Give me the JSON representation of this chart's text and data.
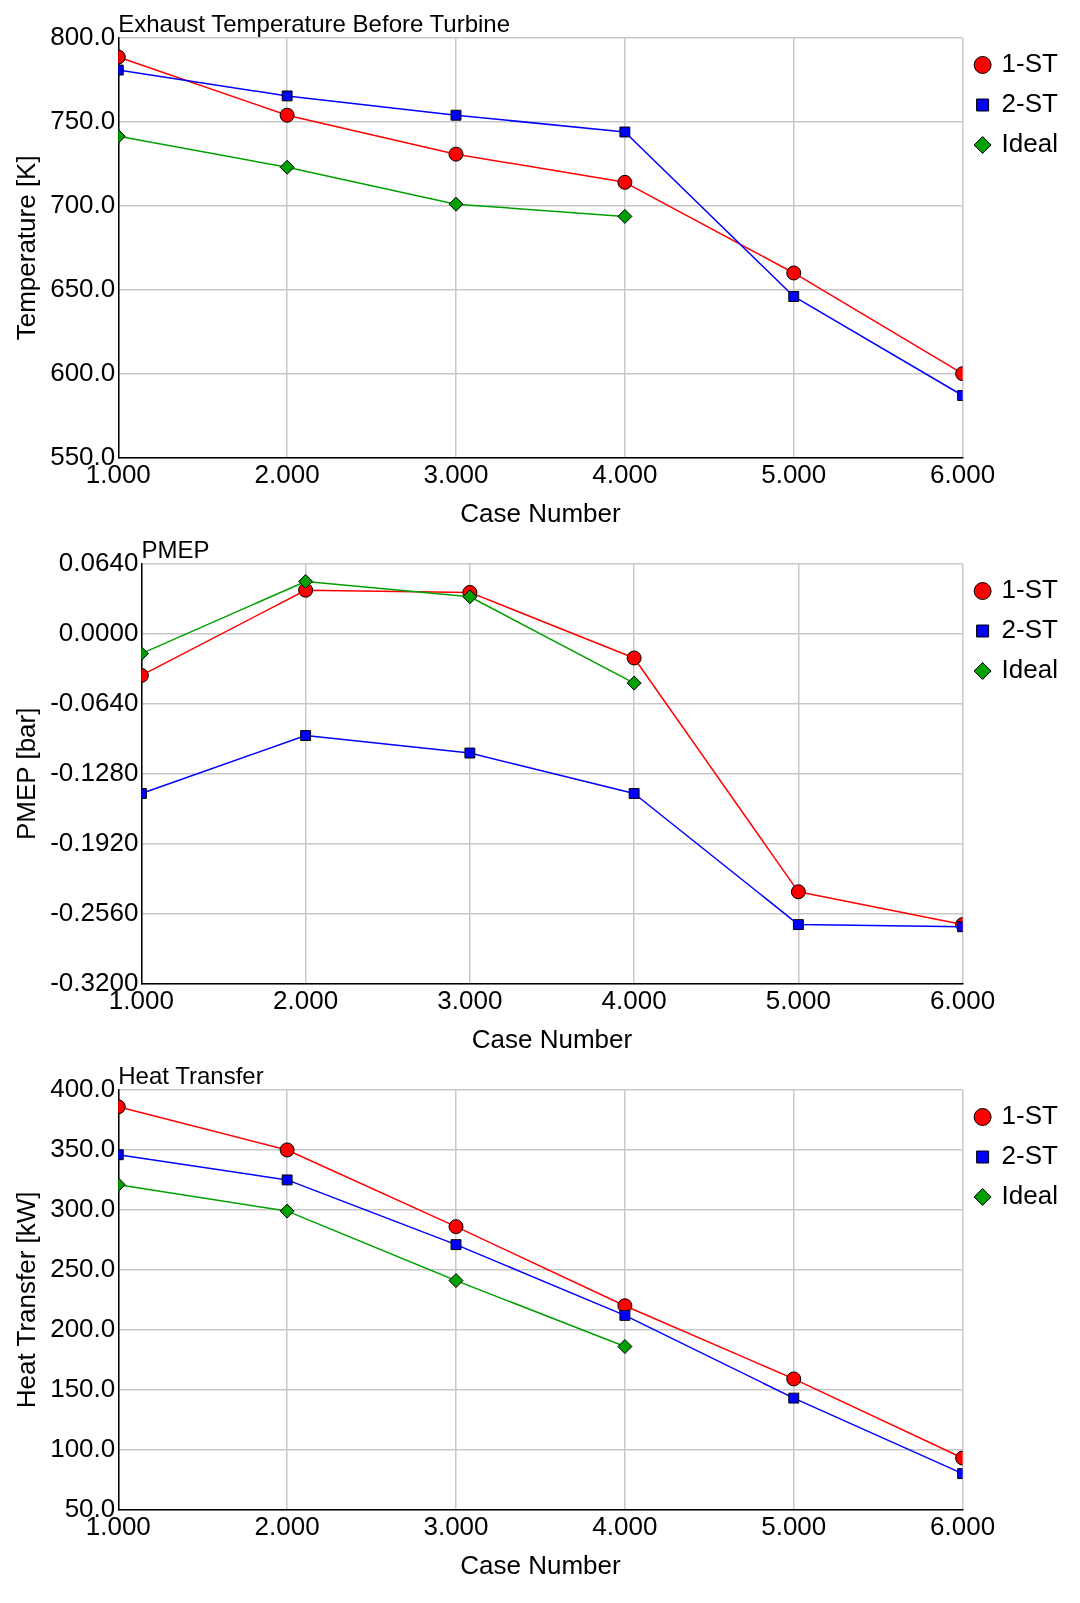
{
  "chart_data": [
    {
      "type": "line",
      "title": "Exhaust Temperature Before Turbine",
      "xlabel": "Case Number",
      "ylabel": "Temperature [K]",
      "x": [
        1,
        2,
        3,
        4,
        5,
        6
      ],
      "xlim": [
        1,
        6
      ],
      "xticks": [
        {
          "value": 1,
          "label": "1.000"
        },
        {
          "value": 2,
          "label": "2.000"
        },
        {
          "value": 3,
          "label": "3.000"
        },
        {
          "value": 4,
          "label": "4.000"
        },
        {
          "value": 5,
          "label": "5.000"
        },
        {
          "value": 6,
          "label": "6.000"
        }
      ],
      "ylim": [
        550,
        800
      ],
      "yticks": [
        {
          "value": 550,
          "label": "550.0"
        },
        {
          "value": 600,
          "label": "600.0"
        },
        {
          "value": 650,
          "label": "650.0"
        },
        {
          "value": 700,
          "label": "700.0"
        },
        {
          "value": 750,
          "label": "750.0"
        },
        {
          "value": 800,
          "label": "800.0"
        }
      ],
      "grid": true,
      "legend": "top right",
      "line_style": "solid",
      "series": [
        {
          "name": "1-ST",
          "color": "#ff0000",
          "marker": "circle",
          "values": [
            788.7,
            754,
            730.8,
            714,
            660,
            600
          ]
        },
        {
          "name": "2-ST",
          "color": "#0000ff",
          "marker": "square",
          "values": [
            780.9,
            765.5,
            754,
            744,
            646,
            587
          ]
        },
        {
          "name": "Ideal",
          "color": "#00a000",
          "marker": "diamond",
          "values": [
            741.4,
            723,
            701,
            693.7,
            null,
            null
          ]
        }
      ]
    },
    {
      "type": "line",
      "title": "PMEP",
      "xlabel": "Case Number",
      "ylabel": "PMEP [bar]",
      "x": [
        1,
        2,
        3,
        4,
        5,
        6
      ],
      "xlim": [
        1,
        6
      ],
      "xticks": [
        {
          "value": 1,
          "label": "1.000"
        },
        {
          "value": 2,
          "label": "2.000"
        },
        {
          "value": 3,
          "label": "3.000"
        },
        {
          "value": 4,
          "label": "4.000"
        },
        {
          "value": 5,
          "label": "5.000"
        },
        {
          "value": 6,
          "label": "6.000"
        }
      ],
      "ylim": [
        -0.32,
        0.064
      ],
      "yticks": [
        {
          "value": -0.32,
          "label": "-0.3200"
        },
        {
          "value": -0.256,
          "label": "-0.2560"
        },
        {
          "value": -0.192,
          "label": "-0.1920"
        },
        {
          "value": -0.128,
          "label": "-0.1280"
        },
        {
          "value": -0.064,
          "label": "-0.0640"
        },
        {
          "value": 0,
          "label": "0.0000"
        },
        {
          "value": 0.064,
          "label": "0.0640"
        }
      ],
      "grid": true,
      "legend": "top right",
      "line_style": "solid",
      "series": [
        {
          "name": "1-ST",
          "color": "#ff0000",
          "marker": "circle",
          "values": [
            -0.038,
            0.04,
            0.038,
            -0.022,
            -0.236,
            -0.266
          ]
        },
        {
          "name": "2-ST",
          "color": "#0000ff",
          "marker": "square",
          "values": [
            -0.146,
            -0.093,
            -0.109,
            -0.146,
            -0.266,
            -0.268
          ]
        },
        {
          "name": "Ideal",
          "color": "#00a000",
          "marker": "diamond",
          "values": [
            -0.018,
            0.048,
            0.034,
            -0.045,
            null,
            null
          ]
        }
      ]
    },
    {
      "type": "line",
      "title": "Heat Transfer",
      "xlabel": "Case Number",
      "ylabel": "Heat Transfer [kW]",
      "x": [
        1,
        2,
        3,
        4,
        5,
        6
      ],
      "xlim": [
        1,
        6
      ],
      "xticks": [
        {
          "value": 1,
          "label": "1.000"
        },
        {
          "value": 2,
          "label": "2.000"
        },
        {
          "value": 3,
          "label": "3.000"
        },
        {
          "value": 4,
          "label": "4.000"
        },
        {
          "value": 5,
          "label": "5.000"
        },
        {
          "value": 6,
          "label": "6.000"
        }
      ],
      "ylim": [
        50,
        400
      ],
      "yticks": [
        {
          "value": 50,
          "label": "50.0"
        },
        {
          "value": 100,
          "label": "100.0"
        },
        {
          "value": 150,
          "label": "150.0"
        },
        {
          "value": 200,
          "label": "200.0"
        },
        {
          "value": 250,
          "label": "250.0"
        },
        {
          "value": 300,
          "label": "300.0"
        },
        {
          "value": 350,
          "label": "350.0"
        },
        {
          "value": 400,
          "label": "400.0"
        }
      ],
      "grid": true,
      "legend": "top right",
      "line_style": "solid",
      "series": [
        {
          "name": "1-ST",
          "color": "#ff0000",
          "marker": "circle",
          "values": [
            386,
            350,
            286,
            220,
            159,
            93
          ]
        },
        {
          "name": "2-ST",
          "color": "#0000ff",
          "marker": "square",
          "values": [
            346,
            325,
            271,
            212,
            143,
            80
          ]
        },
        {
          "name": "Ideal",
          "color": "#00a000",
          "marker": "diamond",
          "values": [
            321,
            299,
            241,
            186,
            null,
            null
          ]
        }
      ]
    }
  ]
}
